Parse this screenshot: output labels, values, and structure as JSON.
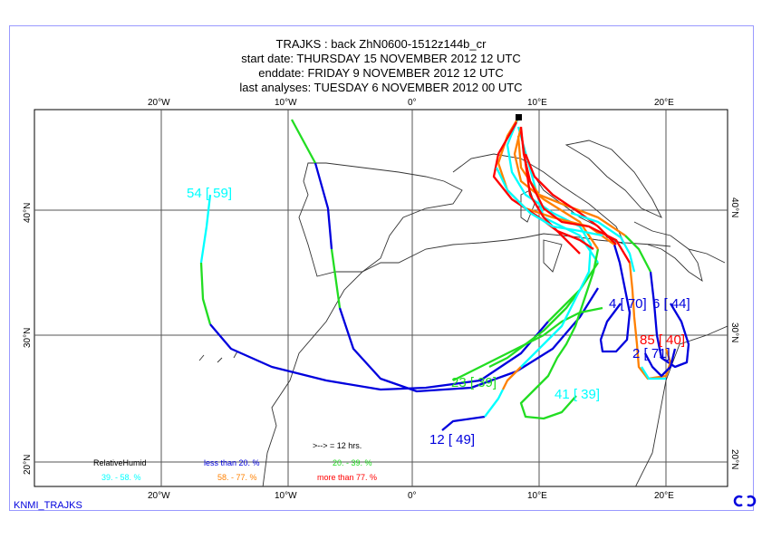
{
  "header": {
    "title": "TRAJKS : back ZhN0600-1512z144b_cr",
    "start_date": "start date:  THURSDAY  15 NOVEMBER  2012 12 UTC",
    "end_date": "enddate:  FRIDAY    9 NOVEMBER  2012 12 UTC",
    "last_analyses": "last analyses:  TUESDAY    6 NOVEMBER  2012 00 UTC"
  },
  "axes": {
    "lon_labels": [
      "20°W",
      "10°W",
      "0°",
      "10°E",
      "20°E"
    ],
    "lat_labels": [
      "40°N",
      "30°N",
      "20°N"
    ]
  },
  "trajectory_labels": [
    {
      "text": "54 [  59]",
      "color": "#00ffff"
    },
    {
      "text": "23 [  39]",
      "color": "#22dd22"
    },
    {
      "text": "41 [  39]",
      "color": "#00ffff"
    },
    {
      "text": "12 [  49]",
      "color": "#0000dd"
    },
    {
      "text": "4 [  70]",
      "color": "#0000dd"
    },
    {
      "text": "6 [  44]",
      "color": "#0000dd"
    },
    {
      "text": "85 [  40]",
      "color": "#ff0000"
    },
    {
      "text": "2 [  71]",
      "color": "#0000dd"
    }
  ],
  "legend": {
    "arrow_note": ">--> = 12 hrs.",
    "title": "RelativeHumid",
    "items": [
      {
        "text": "less than    20. %",
        "color": "#0000dd"
      },
      {
        "text": "20. -    39. %",
        "color": "#22dd22"
      },
      {
        "text": "39. -    58. %",
        "color": "#00ffff"
      },
      {
        "text": "58. -    77. %",
        "color": "#ff8000"
      },
      {
        "text": "more than    77. %",
        "color": "#ff0000"
      }
    ]
  },
  "footer": {
    "label": "KNMI_TRAJKS",
    "logo": "ECMWF"
  }
}
